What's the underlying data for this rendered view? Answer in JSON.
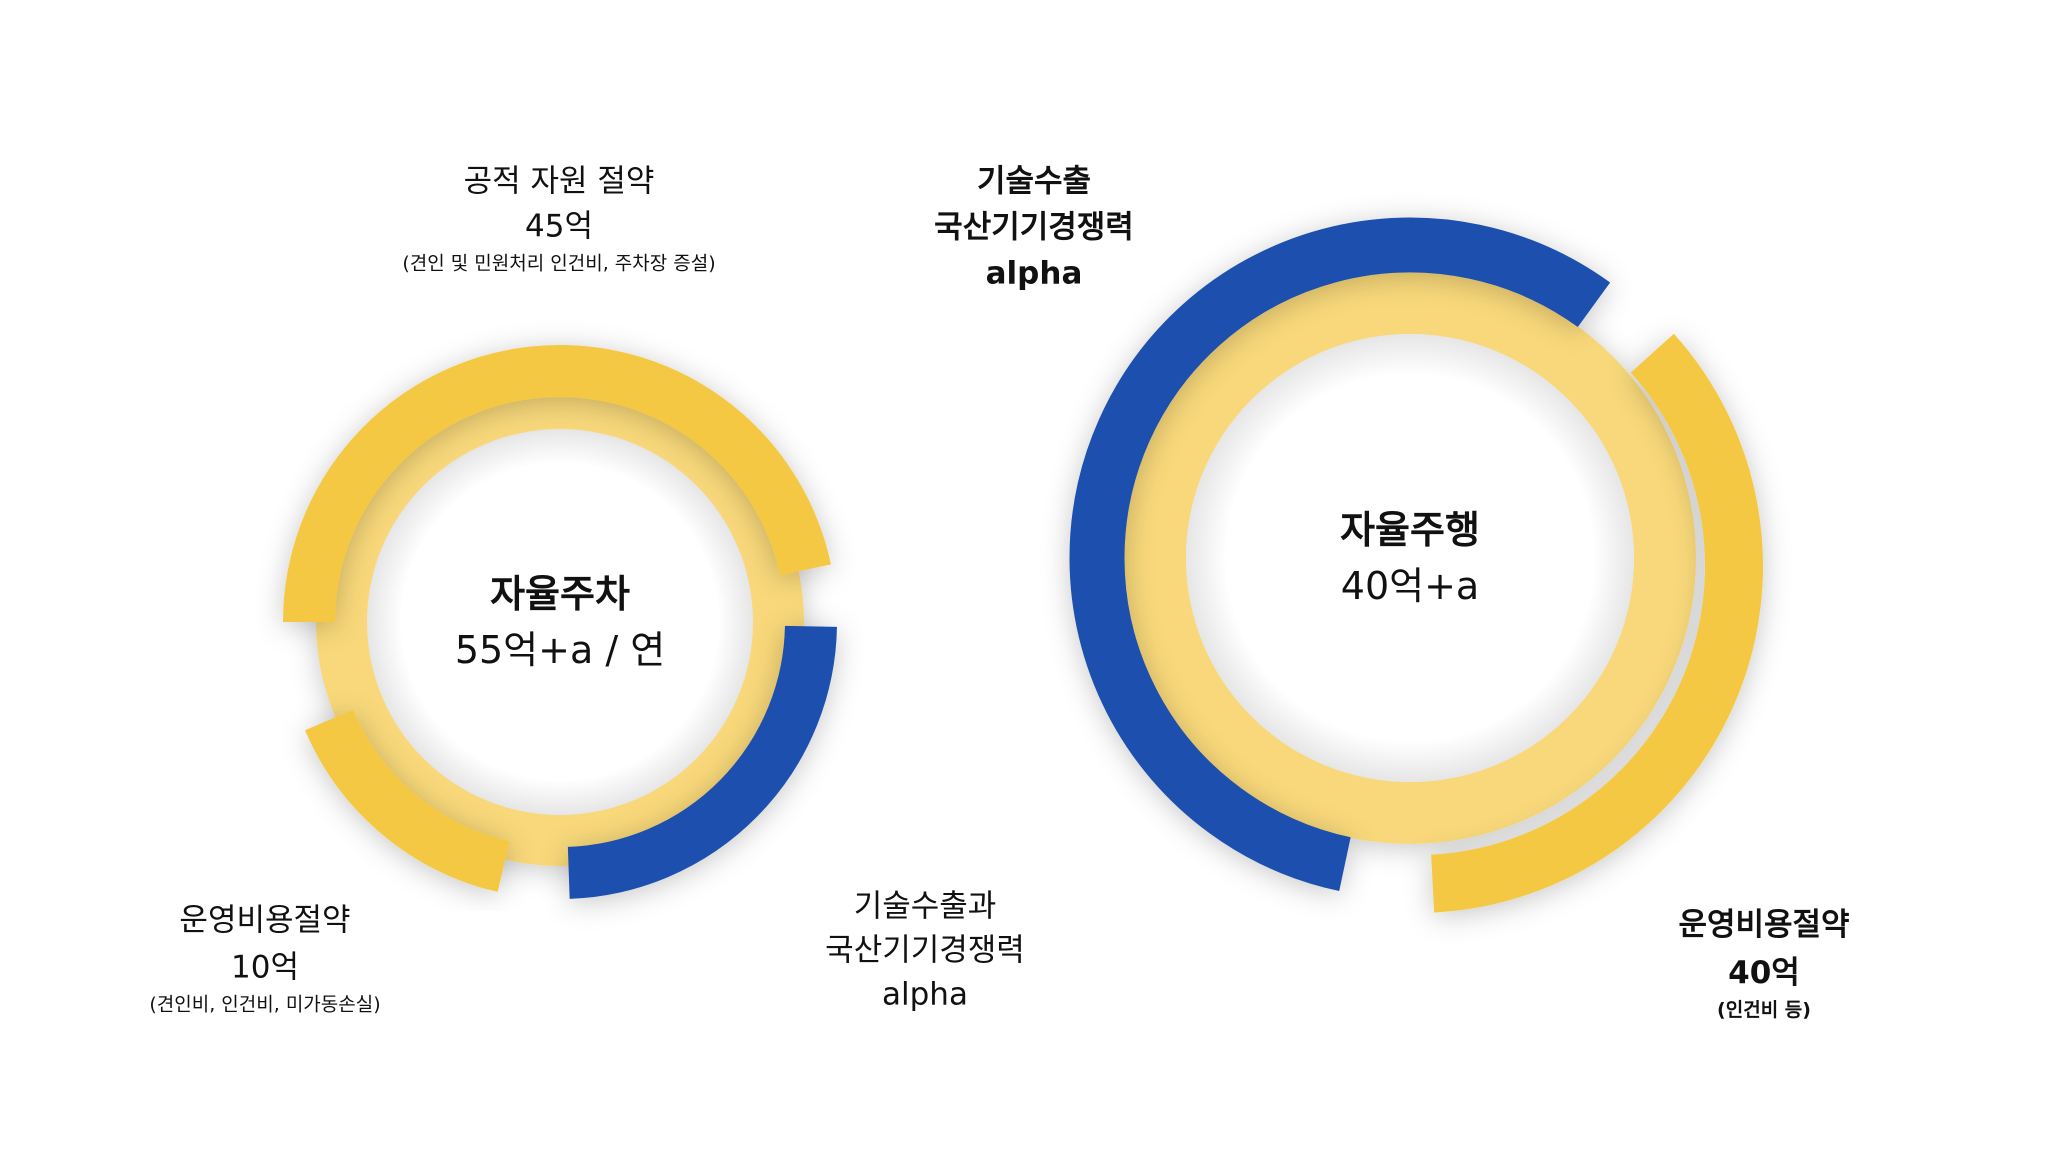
{
  "colors": {
    "yellow": "#F4C842",
    "light_yellow": "#F8D87A",
    "blue": "#1B4FAE",
    "text": "#111111"
  },
  "left_chart": {
    "center_title": "자율주차",
    "center_value": "55억+a / 연",
    "top_label": {
      "title": "공적 자원 절약",
      "value": "45억",
      "note": "(견인 및 민원처리 인건비, 주차장 증설)"
    },
    "bottom_left_label": {
      "title": "운영비용절약",
      "value": "10억",
      "note": "(견인비, 인건비, 미가동손실)"
    },
    "bottom_right_label": {
      "line1": "기술수출과",
      "line2": "국산기기경쟁력",
      "line3": "alpha"
    }
  },
  "right_chart": {
    "center_title": "자율주행",
    "center_value": "40억+a",
    "top_left_label": {
      "line1": "기술수출",
      "line2": "국산기기경쟁력",
      "line3": "alpha"
    },
    "bottom_right_label": {
      "title": "운영비용절약",
      "value": "40억",
      "note": "(인건비 등)"
    }
  }
}
